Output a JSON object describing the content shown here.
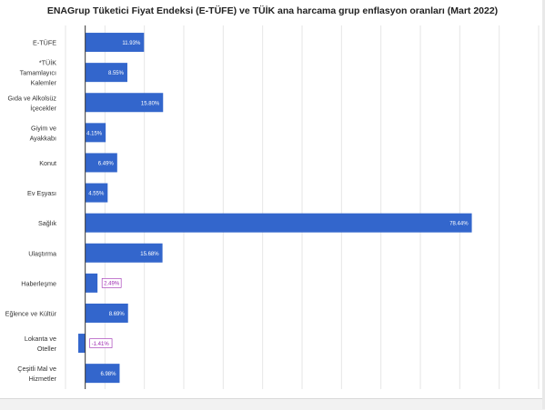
{
  "chart_data": {
    "type": "bar",
    "orientation": "horizontal",
    "title": "ENAGrup Tüketici Fiyat Endeksi (E-TÜFE) ve TÜİK ana harcama grup enflasyon oranları (Mart 2022)",
    "categories": [
      "E-TÜFE",
      "*TÜİK Tamamlayıcı Kalemler",
      "Gıda ve Alkolsüz İçecekler",
      "Giyim ve Ayakkabı",
      "Konut",
      "Ev Eşyası",
      "Sağlık",
      "Ulaştırma",
      "Haberleşme",
      "Eğlence ve Kültür",
      "Lokanta ve Oteller",
      "Çeşitli Mal ve Hizmetler"
    ],
    "category_lines": [
      [
        "E-TÜFE"
      ],
      [
        "*TÜİK",
        "Tamamlayıcı",
        "Kalemler"
      ],
      [
        "Gıda ve Alkolsüz",
        "İçecekler"
      ],
      [
        "Giyim ve",
        "Ayakkabı"
      ],
      [
        "Konut"
      ],
      [
        "Ev Eşyası"
      ],
      [
        "Sağlık"
      ],
      [
        "Ulaştırma"
      ],
      [
        "Haberleşme"
      ],
      [
        "Eğlence ve Kültür"
      ],
      [
        "Lokanta ve",
        "Oteller"
      ],
      [
        "Çeşitli Mal ve",
        "Hizmetler"
      ]
    ],
    "values": [
      11.93,
      8.55,
      15.8,
      4.15,
      6.49,
      4.55,
      78.44,
      15.68,
      2.49,
      8.69,
      -1.41,
      6.98
    ],
    "labels": [
      "11.93%",
      "8.55%",
      "15.80%",
      "4.15%",
      "6.49%",
      "4.55%",
      "78.44%",
      "15.68%",
      "2.49%",
      "8.69%",
      "-1.41%",
      "6.98%"
    ],
    "xlim": [
      -4,
      92
    ],
    "grid": true,
    "legend": "none",
    "bar_color": "#3366cc",
    "outside_label_color": "#9c27b0"
  }
}
